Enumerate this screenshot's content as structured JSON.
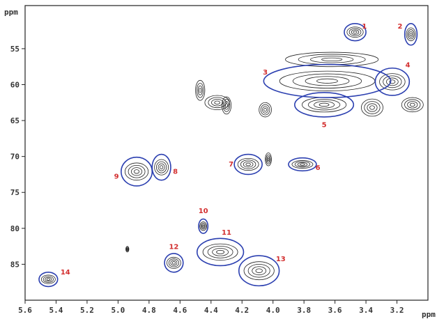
{
  "chart_data": {
    "type": "scatter",
    "subtype": "2D NMR contour plot (HSQC)",
    "x_unit_label": "ppm",
    "y_unit_label": "ppm",
    "xlim": [
      5.6,
      3.0
    ],
    "ylim": [
      49,
      90
    ],
    "x_ticks": [
      5.6,
      5.4,
      5.2,
      5.0,
      4.8,
      4.6,
      4.4,
      4.2,
      4.0,
      3.8,
      3.6,
      3.4,
      3.2
    ],
    "x_tick_labels": [
      "5.6",
      "5.4",
      "5.2",
      "5.0",
      "4.8",
      "4.6",
      "4.4",
      "4.2",
      "4.0",
      "3.8",
      "3.6",
      "3.4",
      "3.2"
    ],
    "y_ticks": [
      55,
      60,
      65,
      70,
      75,
      80,
      85
    ],
    "y_tick_labels": [
      "55",
      "60",
      "65",
      "70",
      "75",
      "80",
      "85"
    ],
    "grid": false,
    "annotated_peaks": [
      {
        "label": "1",
        "x": 3.47,
        "y": 52.7,
        "rx": 0.07,
        "ry": 1.2,
        "label_x": 3.41,
        "label_y": 51.9
      },
      {
        "label": "2",
        "x": 3.11,
        "y": 53.0,
        "rx": 0.04,
        "ry": 1.5,
        "label_x": 3.18,
        "label_y": 51.9
      },
      {
        "label": "3",
        "x": 3.65,
        "y": 59.5,
        "rx": 0.41,
        "ry": 2.3,
        "label_x": 4.05,
        "label_y": 58.3
      },
      {
        "label": "4",
        "x": 3.23,
        "y": 59.6,
        "rx": 0.11,
        "ry": 1.9,
        "label_x": 3.13,
        "label_y": 57.3
      },
      {
        "label": "5",
        "x": 3.67,
        "y": 62.8,
        "rx": 0.19,
        "ry": 1.7,
        "label_x": 3.67,
        "label_y": 65.6
      },
      {
        "label": "6",
        "x": 3.81,
        "y": 71.1,
        "rx": 0.09,
        "ry": 0.9,
        "label_x": 3.71,
        "label_y": 71.6
      },
      {
        "label": "7",
        "x": 4.16,
        "y": 71.1,
        "rx": 0.09,
        "ry": 1.4,
        "label_x": 4.27,
        "label_y": 71.1
      },
      {
        "label": "8",
        "x": 4.72,
        "y": 71.5,
        "rx": 0.06,
        "ry": 1.8,
        "label_x": 4.63,
        "label_y": 72.1
      },
      {
        "label": "9",
        "x": 4.88,
        "y": 72.1,
        "rx": 0.1,
        "ry": 2.0,
        "label_x": 5.01,
        "label_y": 72.8
      },
      {
        "label": "10",
        "x": 4.45,
        "y": 79.7,
        "rx": 0.03,
        "ry": 1.0,
        "label_x": 4.45,
        "label_y": 77.6
      },
      {
        "label": "11",
        "x": 4.34,
        "y": 83.3,
        "rx": 0.15,
        "ry": 1.9,
        "label_x": 4.3,
        "label_y": 80.6
      },
      {
        "label": "12",
        "x": 4.64,
        "y": 84.8,
        "rx": 0.06,
        "ry": 1.3,
        "label_x": 4.64,
        "label_y": 82.6
      },
      {
        "label": "13",
        "x": 4.09,
        "y": 85.9,
        "rx": 0.13,
        "ry": 2.1,
        "label_x": 3.95,
        "label_y": 84.3
      },
      {
        "label": "14",
        "x": 5.45,
        "y": 87.1,
        "rx": 0.06,
        "ry": 1.0,
        "label_x": 5.34,
        "label_y": 86.1
      }
    ],
    "unlabeled_peaks": [
      {
        "x": 3.62,
        "y": 56.5,
        "rx": 0.3,
        "ry": 1.0
      },
      {
        "x": 4.03,
        "y": 70.4,
        "rx": 0.02,
        "ry": 0.9
      },
      {
        "x": 4.36,
        "y": 62.5,
        "rx": 0.08,
        "ry": 1.0
      },
      {
        "x": 4.47,
        "y": 60.8,
        "rx": 0.03,
        "ry": 1.4
      },
      {
        "x": 4.3,
        "y": 62.9,
        "rx": 0.03,
        "ry": 1.2
      },
      {
        "x": 4.05,
        "y": 63.5,
        "rx": 0.04,
        "ry": 1.0
      },
      {
        "x": 3.36,
        "y": 63.2,
        "rx": 0.07,
        "ry": 1.2
      },
      {
        "x": 3.1,
        "y": 62.8,
        "rx": 0.07,
        "ry": 1.0
      },
      {
        "x": 4.94,
        "y": 82.9,
        "rx": 0.01,
        "ry": 0.4
      }
    ]
  }
}
